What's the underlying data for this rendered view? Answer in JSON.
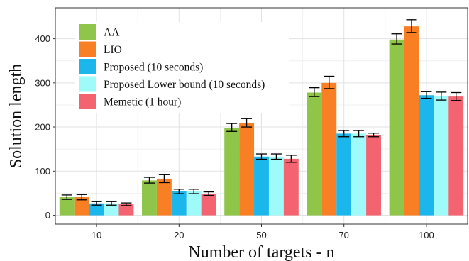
{
  "chart_data": {
    "type": "bar",
    "title": "",
    "xlabel": "Number of targets - n",
    "ylabel": "Solution length",
    "categories": [
      "10",
      "20",
      "50",
      "70",
      "100"
    ],
    "yticks": [
      0,
      100,
      200,
      300,
      400
    ],
    "ylim": [
      -20,
      470
    ],
    "grid": true,
    "legend_position": "top-left",
    "series": [
      {
        "name": "AA",
        "color": "#8fc64a",
        "values": [
          41,
          79,
          198,
          278,
          398
        ],
        "err_low": [
          36,
          73,
          190,
          269,
          388
        ],
        "err_high": [
          46,
          86,
          208,
          289,
          411
        ]
      },
      {
        "name": "LIO",
        "color": "#f87f24",
        "values": [
          41,
          83,
          209,
          300,
          428
        ],
        "err_low": [
          35,
          74,
          200,
          287,
          414
        ],
        "err_high": [
          47,
          92,
          219,
          315,
          443
        ]
      },
      {
        "name": "Proposed (10 seconds)",
        "color": "#1ab6ec",
        "values": [
          27,
          54,
          133,
          185,
          272
        ],
        "err_low": [
          23,
          49,
          127,
          178,
          265
        ],
        "err_high": [
          31,
          59,
          139,
          192,
          280
        ]
      },
      {
        "name": "Proposed Lower bound (10 seconds)",
        "color": "#9ffafa",
        "values": [
          27,
          54,
          133,
          185,
          270
        ],
        "err_low": [
          23,
          49,
          127,
          178,
          261
        ],
        "err_high": [
          31,
          59,
          139,
          192,
          279
        ]
      },
      {
        "name": "Memetic (1 hour)",
        "color": "#f46370",
        "values": [
          25,
          49,
          128,
          182,
          269
        ],
        "err_low": [
          22,
          45,
          120,
          178,
          260
        ],
        "err_high": [
          28,
          53,
          136,
          186,
          278
        ]
      }
    ]
  }
}
